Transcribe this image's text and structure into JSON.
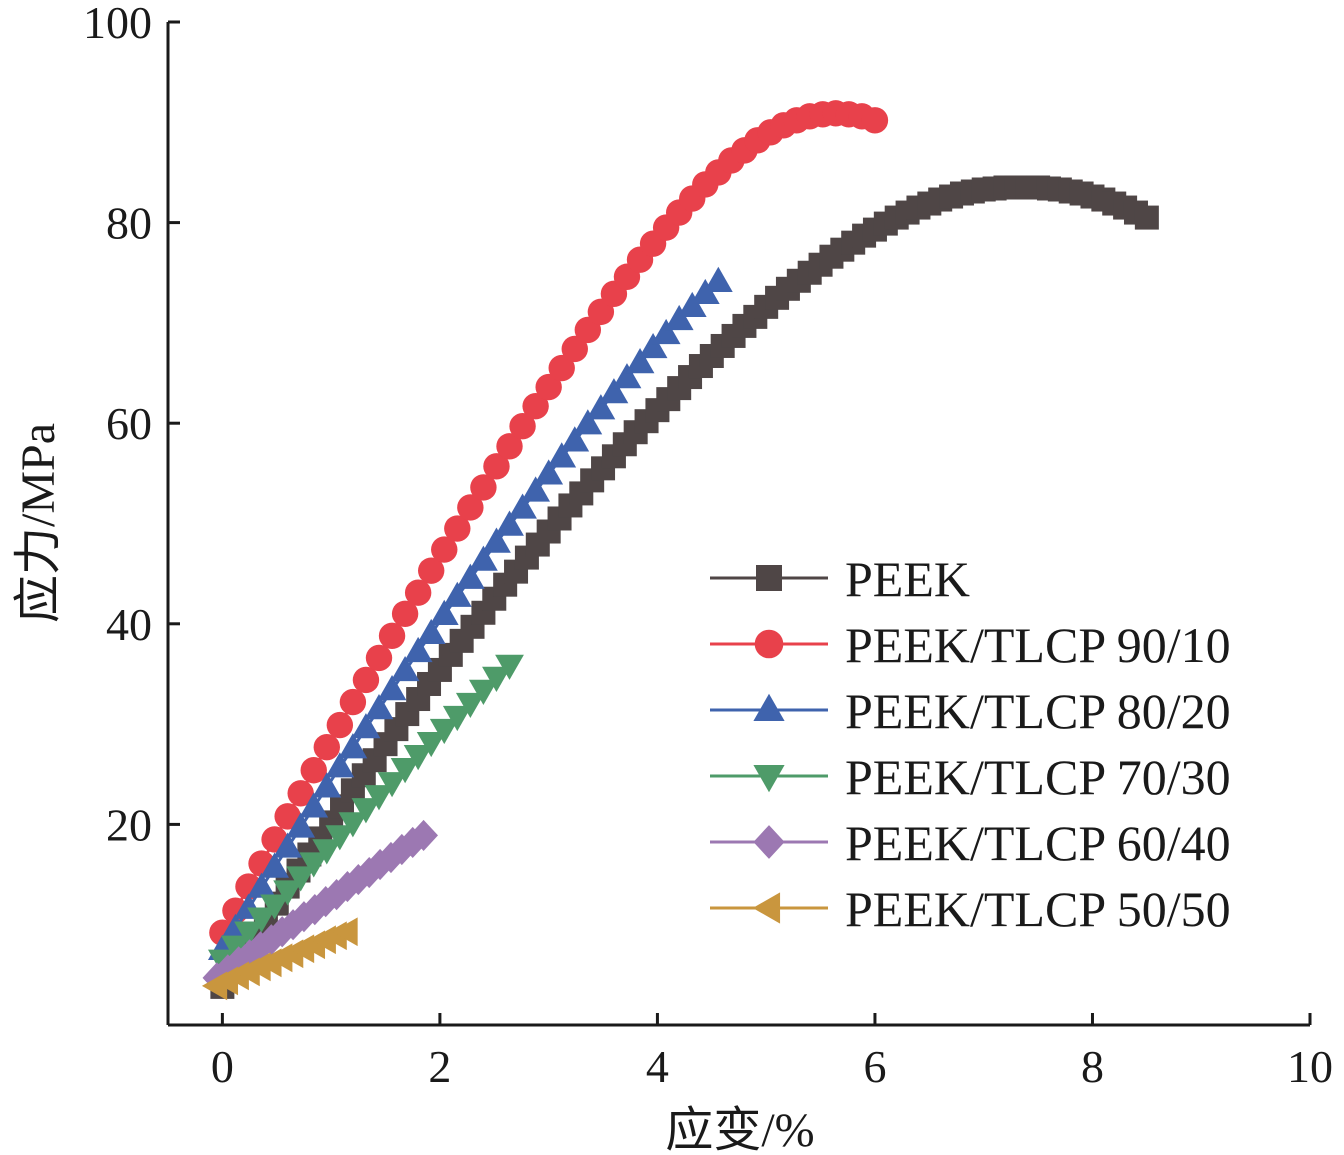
{
  "chart_data": {
    "type": "scatter",
    "title": "",
    "xlabel": "应变/%",
    "ylabel": "应力/MPa",
    "xlim": [
      -0.5,
      10
    ],
    "ylim": [
      0,
      100
    ],
    "xticks": [
      0,
      2,
      4,
      6,
      8,
      10
    ],
    "yticks": [
      20,
      40,
      60,
      80,
      100
    ],
    "grid": false,
    "legend_position": "right",
    "series": [
      {
        "name": "PEEK",
        "color": "#4f4646",
        "marker": "square",
        "x": [
          0.0,
          0.1,
          0.2,
          0.3,
          0.4,
          0.5,
          0.6,
          0.7,
          0.8,
          0.9,
          1.0,
          1.1,
          1.2,
          1.3,
          1.4,
          1.5,
          1.6,
          1.7,
          1.8,
          1.9,
          2.0,
          2.1,
          2.2,
          2.3,
          2.4,
          2.5,
          2.6,
          2.7,
          2.8,
          2.9,
          3.0,
          3.1,
          3.2,
          3.3,
          3.4,
          3.5,
          3.6,
          3.7,
          3.8,
          3.9,
          4.0,
          4.1,
          4.2,
          4.3,
          4.4,
          4.5,
          4.6,
          4.7,
          4.8,
          4.9,
          5.0,
          5.1,
          5.2,
          5.3,
          5.4,
          5.5,
          5.6,
          5.7,
          5.8,
          5.9,
          6.0,
          6.1,
          6.2,
          6.3,
          6.4,
          6.5,
          6.6,
          6.7,
          6.8,
          6.9,
          7.0,
          7.1,
          7.2,
          7.3,
          7.4,
          7.5,
          7.6,
          7.7,
          7.8,
          7.9,
          8.0,
          8.1,
          8.2,
          8.3,
          8.4,
          8.5
        ],
        "y": [
          3.8,
          5.4,
          7.1,
          8.8,
          10.5,
          12.1,
          13.8,
          15.4,
          17.0,
          18.6,
          20.2,
          21.8,
          23.4,
          24.9,
          26.4,
          28.0,
          29.5,
          31.0,
          32.5,
          34.0,
          35.4,
          36.9,
          38.3,
          39.7,
          41.1,
          42.5,
          43.9,
          45.2,
          46.6,
          47.9,
          49.2,
          50.5,
          51.8,
          53.0,
          54.3,
          55.5,
          56.7,
          57.9,
          59.1,
          60.2,
          61.3,
          62.4,
          63.5,
          64.6,
          65.7,
          66.7,
          67.7,
          68.7,
          69.7,
          70.6,
          71.6,
          72.5,
          73.4,
          74.2,
          75.0,
          75.8,
          76.6,
          77.3,
          78.0,
          78.7,
          79.3,
          79.9,
          80.5,
          81.0,
          81.5,
          81.9,
          82.3,
          82.6,
          82.9,
          83.1,
          83.3,
          83.4,
          83.5,
          83.5,
          83.5,
          83.5,
          83.4,
          83.3,
          83.1,
          82.9,
          82.6,
          82.3,
          81.9,
          81.5,
          81.0,
          80.5
        ]
      },
      {
        "name": "PEEK/TLCP 90/10",
        "color": "#e8414b",
        "marker": "circle",
        "x": [
          0.0,
          0.12,
          0.24,
          0.36,
          0.48,
          0.6,
          0.72,
          0.84,
          0.96,
          1.08,
          1.2,
          1.32,
          1.44,
          1.56,
          1.68,
          1.8,
          1.92,
          2.04,
          2.16,
          2.28,
          2.4,
          2.52,
          2.64,
          2.76,
          2.88,
          3.0,
          3.12,
          3.24,
          3.36,
          3.48,
          3.6,
          3.72,
          3.84,
          3.96,
          4.08,
          4.2,
          4.32,
          4.44,
          4.56,
          4.68,
          4.8,
          4.92,
          5.04,
          5.16,
          5.28,
          5.4,
          5.52,
          5.64,
          5.76,
          5.88,
          6.0
        ],
        "y": [
          9.2,
          11.4,
          13.8,
          16.1,
          18.5,
          20.8,
          23.1,
          25.4,
          27.7,
          29.9,
          32.2,
          34.4,
          36.6,
          38.8,
          41.0,
          43.1,
          45.3,
          47.4,
          49.5,
          51.6,
          53.6,
          55.7,
          57.7,
          59.7,
          61.7,
          63.6,
          65.5,
          67.4,
          69.3,
          71.1,
          72.9,
          74.6,
          76.3,
          77.9,
          79.5,
          81.0,
          82.4,
          83.8,
          85.0,
          86.2,
          87.2,
          88.2,
          89.0,
          89.7,
          90.2,
          90.6,
          90.8,
          90.9,
          90.8,
          90.6,
          90.2
        ]
      },
      {
        "name": "PEEK/TLCP 80/20",
        "color": "#3f63ad",
        "marker": "triangle-up",
        "x": [
          0.0,
          0.12,
          0.24,
          0.36,
          0.48,
          0.6,
          0.72,
          0.84,
          0.96,
          1.08,
          1.2,
          1.32,
          1.44,
          1.56,
          1.68,
          1.8,
          1.92,
          2.04,
          2.16,
          2.28,
          2.4,
          2.52,
          2.64,
          2.76,
          2.88,
          3.0,
          3.12,
          3.24,
          3.36,
          3.48,
          3.6,
          3.72,
          3.84,
          3.96,
          4.08,
          4.2,
          4.32,
          4.44,
          4.56
        ],
        "y": [
          7.5,
          9.6,
          11.6,
          13.7,
          15.7,
          17.7,
          19.7,
          21.7,
          23.7,
          25.7,
          27.6,
          29.6,
          31.5,
          33.4,
          35.3,
          37.2,
          39.0,
          40.9,
          42.7,
          44.5,
          46.3,
          48.1,
          49.8,
          51.5,
          53.2,
          54.9,
          56.6,
          58.2,
          59.9,
          61.4,
          63.0,
          64.5,
          66.0,
          67.5,
          68.9,
          70.3,
          71.6,
          72.9,
          74.1
        ]
      },
      {
        "name": "PEEK/TLCP 70/30",
        "color": "#4e9b69",
        "marker": "triangle-down",
        "x": [
          0.0,
          0.12,
          0.24,
          0.36,
          0.48,
          0.6,
          0.72,
          0.84,
          0.96,
          1.08,
          1.2,
          1.32,
          1.44,
          1.56,
          1.68,
          1.8,
          1.92,
          2.04,
          2.16,
          2.28,
          2.4,
          2.52,
          2.64
        ],
        "y": [
          6.5,
          7.9,
          9.3,
          10.7,
          12.0,
          13.4,
          14.8,
          16.2,
          17.5,
          18.9,
          20.2,
          21.6,
          22.9,
          24.2,
          25.6,
          26.9,
          28.2,
          29.5,
          30.8,
          32.1,
          33.4,
          34.7,
          35.9
        ]
      },
      {
        "name": "PEEK/TLCP 60/40",
        "color": "#9c78b2",
        "marker": "diamond",
        "x": [
          -0.05,
          0.05,
          0.15,
          0.25,
          0.35,
          0.45,
          0.55,
          0.65,
          0.75,
          0.85,
          0.95,
          1.05,
          1.15,
          1.25,
          1.35,
          1.45,
          1.55,
          1.65,
          1.75,
          1.85
        ],
        "y": [
          4.7,
          5.5,
          6.3,
          7.0,
          7.8,
          8.5,
          9.3,
          10.0,
          10.8,
          11.5,
          12.3,
          13.0,
          13.8,
          14.5,
          15.2,
          16.0,
          16.7,
          17.5,
          18.2,
          18.9
        ]
      },
      {
        "name": "PEEK/TLCP 50/50",
        "color": "#c9963e",
        "marker": "triangle-left",
        "x": [
          -0.05,
          0.05,
          0.15,
          0.25,
          0.35,
          0.45,
          0.55,
          0.65,
          0.75,
          0.85,
          0.95,
          1.05,
          1.15
        ],
        "y": [
          3.9,
          4.4,
          4.9,
          5.3,
          5.8,
          6.2,
          6.7,
          7.1,
          7.6,
          8.0,
          8.5,
          8.9,
          9.3
        ]
      }
    ]
  }
}
